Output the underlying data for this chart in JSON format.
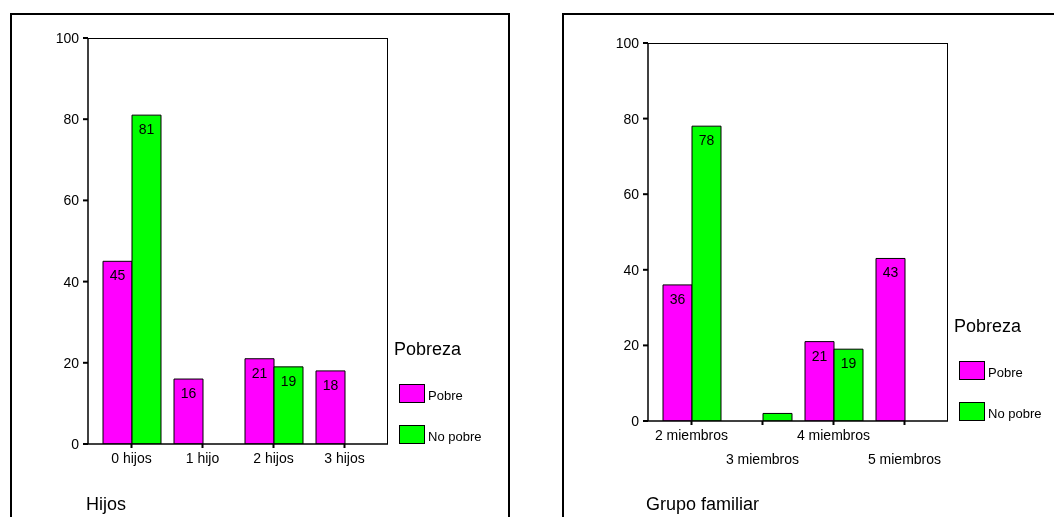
{
  "chart_data": [
    {
      "type": "bar",
      "xlabel": "Hijos",
      "legend_title": "Pobreza",
      "categories": [
        "0 hijos",
        "1 hijo",
        "2 hijos",
        "3 hijos"
      ],
      "series": [
        {
          "name": "Pobre",
          "color": "#ff00ff",
          "values": [
            45,
            16,
            21,
            18
          ]
        },
        {
          "name": "No pobre",
          "color": "#00ff00",
          "values": [
            81,
            null,
            19,
            null
          ]
        }
      ],
      "ylim": [
        0,
        100
      ],
      "yticks": [
        0,
        20,
        40,
        60,
        80,
        100
      ],
      "legend": "right",
      "data_labels": true
    },
    {
      "type": "bar",
      "xlabel": "Grupo familiar",
      "legend_title": "Pobreza",
      "categories": [
        "2 miembros",
        "3 miembros",
        "4 miembros",
        "5 miembros"
      ],
      "series": [
        {
          "name": "Pobre",
          "color": "#ff00ff",
          "values": [
            36,
            null,
            21,
            43
          ],
          "value_labels": [
            "36",
            null,
            "21",
            "43"
          ]
        },
        {
          "name": "No pobre",
          "color": "#00ff00",
          "values": [
            78,
            2,
            19,
            null
          ],
          "value_labels": [
            "78",
            null,
            "19",
            null
          ]
        }
      ],
      "ylim": [
        0,
        100
      ],
      "yticks": [
        0,
        20,
        40,
        60,
        80,
        100
      ],
      "legend": "right"
    }
  ]
}
